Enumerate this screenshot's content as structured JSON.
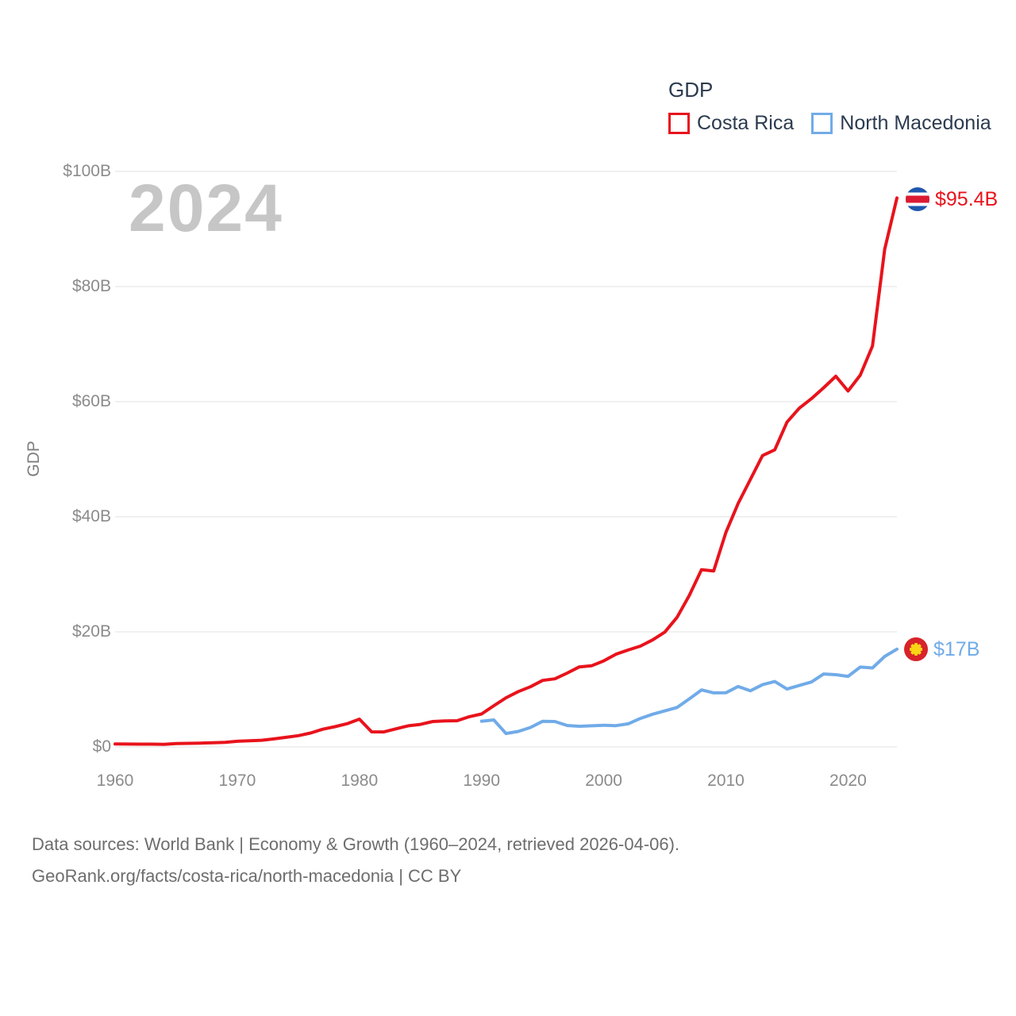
{
  "watermark_year": "2024",
  "legend": {
    "title": "GDP"
  },
  "footer": {
    "line1": "Data sources: World Bank | Economy & Growth (1960–2024, retrieved 2026-04-06).",
    "line2": "GeoRank.org/facts/costa-rica/north-macedonia | CC BY"
  },
  "chart_data": {
    "type": "line",
    "title": "GDP",
    "xlabel": "",
    "ylabel": "GDP",
    "xlim": [
      1960,
      2024
    ],
    "ylim": [
      0,
      100
    ],
    "x_ticks": [
      1960,
      1970,
      1980,
      1990,
      2000,
      2010,
      2020
    ],
    "y_ticks": [
      0,
      20,
      40,
      60,
      80,
      100
    ],
    "y_tick_labels": [
      "$0",
      "$20B",
      "$40B",
      "$60B",
      "$80B",
      "$100B"
    ],
    "grid": true,
    "legend_position": "top-right",
    "units": "billions USD",
    "series": [
      {
        "name": "Costa Rica",
        "color": "#e8131c",
        "flag_icon": "costa-rica-flag-icon",
        "start_year": 1960,
        "end_year": 2024,
        "end_value_label": "$95.4B",
        "values": [
          0.51,
          0.49,
          0.48,
          0.48,
          0.46,
          0.59,
          0.62,
          0.66,
          0.72,
          0.8,
          0.98,
          1.08,
          1.16,
          1.39,
          1.67,
          1.96,
          2.41,
          3.07,
          3.52,
          4.04,
          4.83,
          2.62,
          2.61,
          3.15,
          3.67,
          3.92,
          4.42,
          4.53,
          4.55,
          5.26,
          5.72,
          7.16,
          8.54,
          9.62,
          10.46,
          11.56,
          11.84,
          12.83,
          13.9,
          14.1,
          14.95,
          16.11,
          16.84,
          17.52,
          18.59,
          19.96,
          22.53,
          26.32,
          30.8,
          30.57,
          37.27,
          42.29,
          46.47,
          50.64,
          51.63,
          56.44,
          58.85,
          60.52,
          62.42,
          64.42,
          61.85,
          64.61,
          69.67,
          86.5,
          95.4
        ]
      },
      {
        "name": "North Macedonia",
        "color": "#71abe8",
        "flag_icon": "north-macedonia-flag-icon",
        "start_year": 1990,
        "end_year": 2024,
        "end_value_label": "$17B",
        "values": [
          4.47,
          4.69,
          2.33,
          2.69,
          3.38,
          4.45,
          4.42,
          3.73,
          3.58,
          3.67,
          3.77,
          3.7,
          4.02,
          4.95,
          5.68,
          6.26,
          6.86,
          8.34,
          9.91,
          9.4,
          9.41,
          10.49,
          9.75,
          10.82,
          11.36,
          10.06,
          10.68,
          11.28,
          12.67,
          12.55,
          12.26,
          13.88,
          13.72,
          15.73,
          17.0
        ]
      }
    ]
  }
}
